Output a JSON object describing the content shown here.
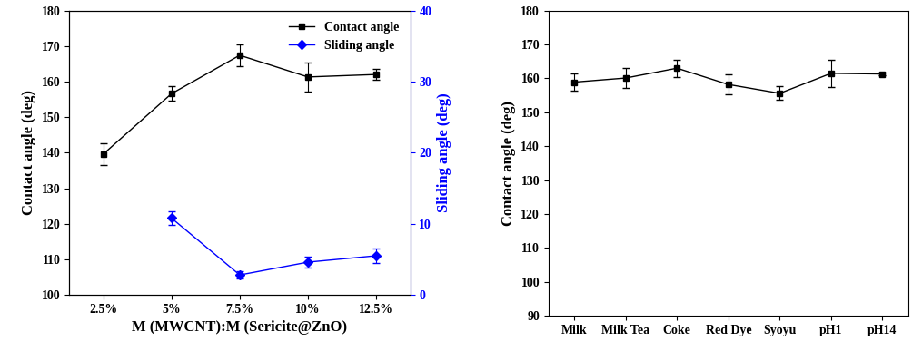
{
  "chart_data": [
    {
      "type": "line",
      "categories": [
        "2.5%",
        "5%",
        "7.5%",
        "10%",
        "12.5%"
      ],
      "x_label": "M (MWCNT):M (Sericite@ZnO)",
      "y_label": "Contact angle (deg)",
      "y2_label": "Sliding angle (deg)",
      "ylim": [
        100,
        180
      ],
      "yticks": [
        100,
        110,
        120,
        130,
        140,
        150,
        160,
        170,
        180
      ],
      "y2lim": [
        0,
        40
      ],
      "y2ticks": [
        0,
        10,
        20,
        30,
        40
      ],
      "legend": "upper right",
      "series": [
        {
          "name": "Contact angle",
          "color": "#000000",
          "marker": "square",
          "values": [
            139.6,
            156.6,
            167.4,
            161.3,
            162.0
          ],
          "errors": [
            3.0,
            2.0,
            3.0,
            4.0,
            1.5
          ]
        },
        {
          "name": "Sliding angle",
          "color": "#0000ff",
          "marker": "diamond",
          "axis": "y2",
          "values": [
            null,
            10.8,
            2.8,
            4.6,
            5.5
          ],
          "errors": [
            null,
            1.0,
            0.5,
            0.8,
            1.0
          ]
        }
      ]
    },
    {
      "type": "line",
      "categories": [
        "Milk",
        "Milk Tea",
        "Coke",
        "Red Dye",
        "Syoyu",
        "pH1",
        "pH14"
      ],
      "y_label": "Contact angle (deg)",
      "ylim": [
        90,
        180
      ],
      "yticks": [
        90,
        100,
        110,
        120,
        130,
        140,
        150,
        160,
        170,
        180
      ],
      "series": [
        {
          "color": "#000000",
          "marker": "square",
          "values": [
            158.9,
            160.1,
            163.0,
            158.2,
            155.6,
            161.5,
            161.3
          ],
          "errors": [
            2.5,
            3.0,
            2.5,
            3.0,
            2.0,
            4.0,
            0.5
          ]
        }
      ]
    }
  ]
}
